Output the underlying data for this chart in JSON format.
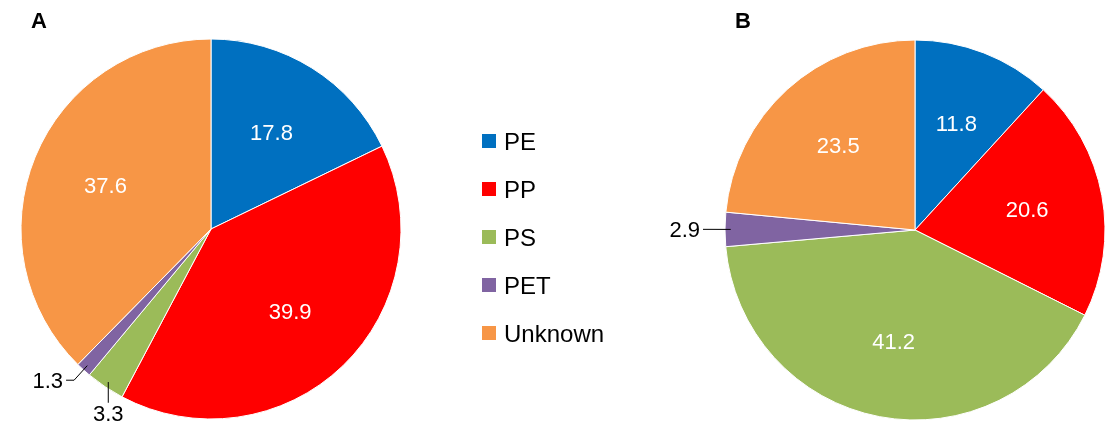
{
  "chart_data": [
    {
      "type": "pie",
      "title": "A",
      "categories": [
        "PE",
        "PP",
        "PS",
        "PET",
        "Unknown"
      ],
      "values": [
        17.8,
        39.9,
        3.3,
        1.3,
        37.6
      ],
      "colors": [
        "#0070c0",
        "#ff0000",
        "#9bbb59",
        "#8064a2",
        "#f79646"
      ],
      "data_labels": true,
      "legend": "right"
    },
    {
      "type": "pie",
      "title": "B",
      "categories": [
        null,
        null,
        null,
        null,
        null
      ],
      "values": [
        11.8,
        20.6,
        41.2,
        2.9,
        23.5
      ],
      "colors": [
        "#0070c0",
        "#ff0000",
        "#9bbb59",
        "#8064a2",
        "#f79646"
      ],
      "data_labels": true
    }
  ]
}
